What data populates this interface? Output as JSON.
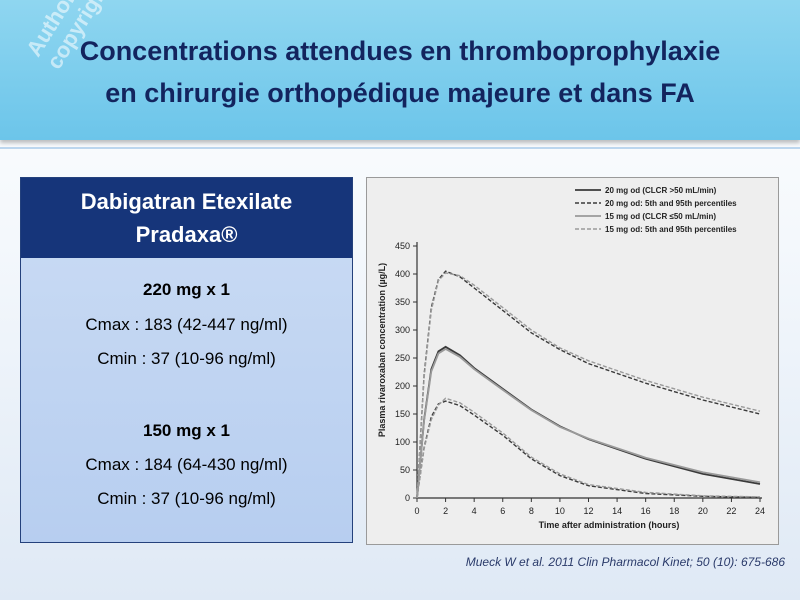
{
  "slide": {
    "title_line1": "Concentrations attendues en thromboprophylaxie",
    "title_line2": "en chirurgie orthopédique majeure et dans FA",
    "watermark_line1": "Author's",
    "watermark_line2": "copyright©",
    "citation": "Mueck W et al. 2011 Clin Pharmacol Kinet; 50 (10): 675-686"
  },
  "card": {
    "header_line1": "Dabigatran Etexilate",
    "header_line2": "Pradaxa®",
    "dose1": "220 mg x 1",
    "dose1_cmax": "Cmax : 183 (42-447 ng/ml)",
    "dose1_cmin": "Cmin : 37 (10-96 ng/ml)",
    "dose2": "150 mg x 1",
    "dose2_cmax": "Cmax : 184 (64-430 ng/ml)",
    "dose2_cmin": "Cmin : 37 (10-96 ng/ml)"
  },
  "chart_data": {
    "type": "line",
    "xlabel": "Time after administration (hours)",
    "ylabel": "Plasma rivaroxaban concentration (µg/L)",
    "xlim": [
      0,
      24
    ],
    "ylim": [
      0,
      450
    ],
    "xticks": [
      0,
      2,
      4,
      6,
      8,
      10,
      12,
      14,
      16,
      18,
      20,
      22,
      24
    ],
    "yticks": [
      0,
      50,
      100,
      150,
      200,
      250,
      300,
      350,
      400,
      450
    ],
    "legend_position": "top-right",
    "grid": false,
    "series": [
      {
        "name": "20 mg od (CLCR >50 mL/min)",
        "style": "solid",
        "color": "#3a3a3a",
        "x": [
          0,
          0.5,
          1,
          1.5,
          2,
          3,
          4,
          6,
          8,
          10,
          12,
          16,
          20,
          24
        ],
        "y": [
          0,
          140,
          230,
          262,
          270,
          255,
          232,
          195,
          158,
          128,
          105,
          70,
          43,
          25
        ]
      },
      {
        "name": "20 mg od: 5th and 95th percentiles",
        "style": "dashed",
        "color": "#3a3a3a",
        "x": [
          0,
          0.5,
          1,
          1.5,
          2,
          3,
          4,
          6,
          8,
          10,
          12,
          16,
          20,
          24
        ],
        "y": [
          0,
          220,
          340,
          390,
          405,
          395,
          375,
          335,
          295,
          265,
          240,
          205,
          175,
          150
        ]
      },
      {
        "name": "",
        "style": "dashed",
        "color": "#3a3a3a",
        "x": [
          0,
          0.5,
          1,
          1.5,
          2,
          3,
          4,
          6,
          8,
          10,
          12,
          16,
          20,
          24
        ],
        "y": [
          0,
          90,
          145,
          168,
          173,
          165,
          148,
          112,
          70,
          40,
          22,
          8,
          3,
          1
        ]
      },
      {
        "name": "15 mg od (CLCR ≤50 mL/min)",
        "style": "solid",
        "color": "#9a9a9a",
        "x": [
          0,
          0.5,
          1,
          1.5,
          2,
          3,
          4,
          6,
          8,
          10,
          12,
          16,
          20,
          24
        ],
        "y": [
          0,
          138,
          226,
          258,
          266,
          252,
          230,
          193,
          157,
          127,
          106,
          72,
          46,
          28
        ]
      },
      {
        "name": "15 mg od: 5th and 95th percentiles",
        "style": "dashed",
        "color": "#9a9a9a",
        "x": [
          0,
          0.5,
          1,
          1.5,
          2,
          3,
          4,
          6,
          8,
          10,
          12,
          16,
          20,
          24
        ],
        "y": [
          0,
          215,
          335,
          388,
          402,
          397,
          380,
          340,
          300,
          268,
          245,
          210,
          180,
          155
        ]
      },
      {
        "name": "",
        "style": "dashed",
        "color": "#9a9a9a",
        "x": [
          0,
          0.5,
          1,
          1.5,
          2,
          3,
          4,
          6,
          8,
          10,
          12,
          16,
          20,
          24
        ],
        "y": [
          0,
          88,
          140,
          166,
          178,
          170,
          153,
          116,
          73,
          43,
          24,
          10,
          4,
          2
        ]
      }
    ]
  }
}
